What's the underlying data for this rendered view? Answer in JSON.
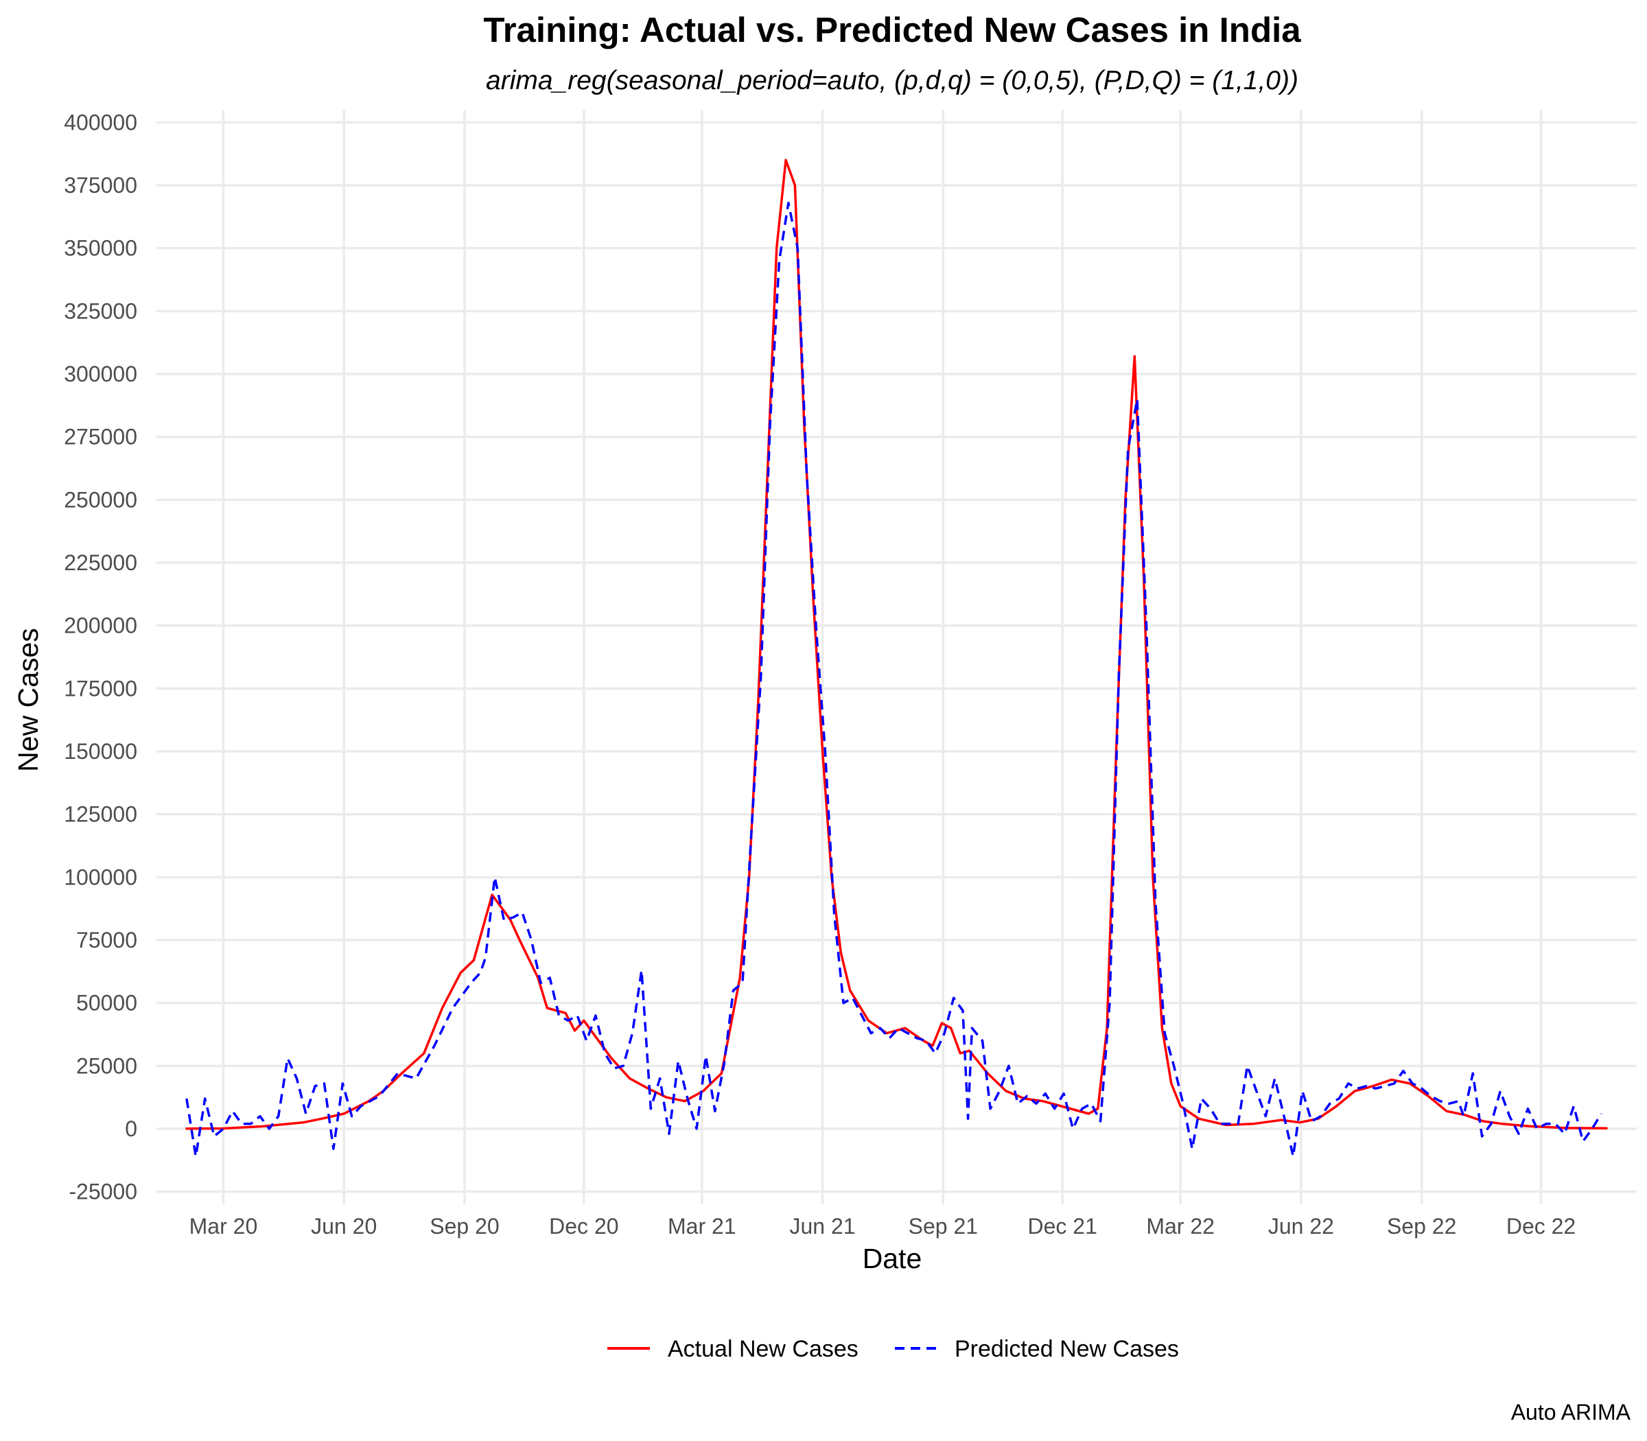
{
  "chart_data": {
    "type": "line",
    "title": "Training: Actual vs. Predicted New Cases in India",
    "subtitle": "arima_reg(seasonal_period=auto, (p,d,q) = (0,0,5), (P,D,Q) = (1,1,0))",
    "xlabel": "Date",
    "ylabel": "New Cases",
    "caption": "Auto ARIMA",
    "x_ticks": [
      {
        "date": "2020-03-01",
        "label": "Mar 20"
      },
      {
        "date": "2020-06-01",
        "label": "Jun 20"
      },
      {
        "date": "2020-09-01",
        "label": "Sep 20"
      },
      {
        "date": "2020-12-01",
        "label": "Dec 20"
      },
      {
        "date": "2021-03-01",
        "label": "Mar 21"
      },
      {
        "date": "2021-06-01",
        "label": "Jun 21"
      },
      {
        "date": "2021-09-01",
        "label": "Sep 21"
      },
      {
        "date": "2021-12-01",
        "label": "Dec 21"
      },
      {
        "date": "2022-03-01",
        "label": "Mar 22"
      },
      {
        "date": "2022-06-01",
        "label": "Jun 22"
      },
      {
        "date": "2022-09-01",
        "label": "Sep 22"
      },
      {
        "date": "2022-12-01",
        "label": "Dec 22"
      }
    ],
    "xlim": [
      "2020-01-10",
      "2023-02-12"
    ],
    "y_ticks": [
      400000,
      375000,
      350000,
      325000,
      300000,
      275000,
      250000,
      225000,
      200000,
      175000,
      150000,
      125000,
      100000,
      75000,
      50000,
      25000,
      0,
      -25000
    ],
    "ylim": [
      -30000,
      405000
    ],
    "grid": true,
    "legend_position": "bottom",
    "series": [
      {
        "name": "Actual New Cases",
        "color": "#ff0000",
        "style": "solid",
        "points": [
          [
            "2020-02-02",
            50
          ],
          [
            "2020-03-01",
            150
          ],
          [
            "2020-04-01",
            1000
          ],
          [
            "2020-05-01",
            2500
          ],
          [
            "2020-05-15",
            4000
          ],
          [
            "2020-06-01",
            6000
          ],
          [
            "2020-06-20",
            11000
          ],
          [
            "2020-07-01",
            15000
          ],
          [
            "2020-07-15",
            22000
          ],
          [
            "2020-08-01",
            30000
          ],
          [
            "2020-08-15",
            48000
          ],
          [
            "2020-08-29",
            62000
          ],
          [
            "2020-09-08",
            67000
          ],
          [
            "2020-09-15",
            80000
          ],
          [
            "2020-09-22",
            93000
          ],
          [
            "2020-09-29",
            88000
          ],
          [
            "2020-10-06",
            83000
          ],
          [
            "2020-10-13",
            75000
          ],
          [
            "2020-10-27",
            60000
          ],
          [
            "2020-11-03",
            48000
          ],
          [
            "2020-11-17",
            46000
          ],
          [
            "2020-11-24",
            39000
          ],
          [
            "2020-12-01",
            43000
          ],
          [
            "2020-12-08",
            38000
          ],
          [
            "2020-12-22",
            28000
          ],
          [
            "2021-01-05",
            20000
          ],
          [
            "2021-01-19",
            16000
          ],
          [
            "2021-02-02",
            12500
          ],
          [
            "2021-02-16",
            11000
          ],
          [
            "2021-03-02",
            15000
          ],
          [
            "2021-03-16",
            22000
          ],
          [
            "2021-03-30",
            60000
          ],
          [
            "2021-04-06",
            100000
          ],
          [
            "2021-04-13",
            170000
          ],
          [
            "2021-04-20",
            260000
          ],
          [
            "2021-04-27",
            350000
          ],
          [
            "2021-05-04",
            385000
          ],
          [
            "2021-05-11",
            375000
          ],
          [
            "2021-05-18",
            280000
          ],
          [
            "2021-05-25",
            210000
          ],
          [
            "2021-06-01",
            150000
          ],
          [
            "2021-06-08",
            100000
          ],
          [
            "2021-06-15",
            70000
          ],
          [
            "2021-06-22",
            55000
          ],
          [
            "2021-07-06",
            43000
          ],
          [
            "2021-07-20",
            38000
          ],
          [
            "2021-08-03",
            40000
          ],
          [
            "2021-08-17",
            35000
          ],
          [
            "2021-08-24",
            33000
          ],
          [
            "2021-08-31",
            42000
          ],
          [
            "2021-09-07",
            40000
          ],
          [
            "2021-09-14",
            30000
          ],
          [
            "2021-09-21",
            31000
          ],
          [
            "2021-10-05",
            22000
          ],
          [
            "2021-10-19",
            15000
          ],
          [
            "2021-11-02",
            12000
          ],
          [
            "2021-11-16",
            11000
          ],
          [
            "2021-11-30",
            9000
          ],
          [
            "2021-12-21",
            6000
          ],
          [
            "2021-12-28",
            8000
          ],
          [
            "2022-01-04",
            40000
          ],
          [
            "2022-01-11",
            150000
          ],
          [
            "2022-01-18",
            250000
          ],
          [
            "2022-01-25",
            307000
          ],
          [
            "2022-02-01",
            220000
          ],
          [
            "2022-02-08",
            100000
          ],
          [
            "2022-02-15",
            40000
          ],
          [
            "2022-02-22",
            18000
          ],
          [
            "2022-03-01",
            9000
          ],
          [
            "2022-03-15",
            4000
          ],
          [
            "2022-04-05",
            1500
          ],
          [
            "2022-04-26",
            2000
          ],
          [
            "2022-05-17",
            3500
          ],
          [
            "2022-05-31",
            2500
          ],
          [
            "2022-06-14",
            4000
          ],
          [
            "2022-06-28",
            9000
          ],
          [
            "2022-07-12",
            15000
          ],
          [
            "2022-07-26",
            17000
          ],
          [
            "2022-08-09",
            19500
          ],
          [
            "2022-08-23",
            18000
          ],
          [
            "2022-09-06",
            13000
          ],
          [
            "2022-09-20",
            7000
          ],
          [
            "2022-10-04",
            5500
          ],
          [
            "2022-10-18",
            3000
          ],
          [
            "2022-11-01",
            2000
          ],
          [
            "2022-11-22",
            1000
          ],
          [
            "2022-12-20",
            300
          ],
          [
            "2023-01-20",
            200
          ]
        ]
      },
      {
        "name": "Predicted New Cases",
        "color": "#0000ff",
        "style": "dashed",
        "points": [
          [
            "2020-02-02",
            12000
          ],
          [
            "2020-02-09",
            -11000
          ],
          [
            "2020-02-16",
            12000
          ],
          [
            "2020-02-23",
            -3000
          ],
          [
            "2020-03-01",
            0
          ],
          [
            "2020-03-08",
            7000
          ],
          [
            "2020-03-15",
            2000
          ],
          [
            "2020-03-22",
            2000
          ],
          [
            "2020-03-29",
            5000
          ],
          [
            "2020-04-05",
            0
          ],
          [
            "2020-04-12",
            5000
          ],
          [
            "2020-04-19",
            28000
          ],
          [
            "2020-04-26",
            20000
          ],
          [
            "2020-05-03",
            6000
          ],
          [
            "2020-05-10",
            17000
          ],
          [
            "2020-05-17",
            18000
          ],
          [
            "2020-05-24",
            -8000
          ],
          [
            "2020-05-31",
            18000
          ],
          [
            "2020-06-07",
            5000
          ],
          [
            "2020-06-14",
            9000
          ],
          [
            "2020-06-28",
            13000
          ],
          [
            "2020-07-12",
            22000
          ],
          [
            "2020-07-26",
            20000
          ],
          [
            "2020-08-09",
            33000
          ],
          [
            "2020-08-23",
            48000
          ],
          [
            "2020-09-06",
            58000
          ],
          [
            "2020-09-13",
            62000
          ],
          [
            "2020-09-17",
            68000
          ],
          [
            "2020-09-24",
            100000
          ],
          [
            "2020-10-01",
            83000
          ],
          [
            "2020-10-08",
            84000
          ],
          [
            "2020-10-15",
            86000
          ],
          [
            "2020-10-22",
            75000
          ],
          [
            "2020-10-29",
            58000
          ],
          [
            "2020-11-05",
            60000
          ],
          [
            "2020-11-12",
            45000
          ],
          [
            "2020-11-19",
            43000
          ],
          [
            "2020-11-26",
            45000
          ],
          [
            "2020-12-03",
            35000
          ],
          [
            "2020-12-10",
            45000
          ],
          [
            "2020-12-17",
            30000
          ],
          [
            "2020-12-24",
            24000
          ],
          [
            "2020-12-31",
            25000
          ],
          [
            "2021-01-07",
            38000
          ],
          [
            "2021-01-14",
            63000
          ],
          [
            "2021-01-21",
            8000
          ],
          [
            "2021-01-28",
            20000
          ],
          [
            "2021-02-04",
            -2000
          ],
          [
            "2021-02-11",
            27000
          ],
          [
            "2021-02-18",
            12000
          ],
          [
            "2021-02-25",
            0
          ],
          [
            "2021-03-04",
            29000
          ],
          [
            "2021-03-11",
            7000
          ],
          [
            "2021-03-18",
            26000
          ],
          [
            "2021-03-25",
            55000
          ],
          [
            "2021-04-01",
            58000
          ],
          [
            "2021-04-08",
            120000
          ],
          [
            "2021-04-15",
            180000
          ],
          [
            "2021-04-22",
            280000
          ],
          [
            "2021-04-29",
            345000
          ],
          [
            "2021-05-06",
            368000
          ],
          [
            "2021-05-13",
            350000
          ],
          [
            "2021-05-20",
            260000
          ],
          [
            "2021-05-27",
            200000
          ],
          [
            "2021-06-03",
            150000
          ],
          [
            "2021-06-10",
            85000
          ],
          [
            "2021-06-17",
            50000
          ],
          [
            "2021-06-24",
            52000
          ],
          [
            "2021-07-01",
            45000
          ],
          [
            "2021-07-08",
            38000
          ],
          [
            "2021-07-15",
            40000
          ],
          [
            "2021-07-22",
            36000
          ],
          [
            "2021-07-29",
            40000
          ],
          [
            "2021-08-05",
            38000
          ],
          [
            "2021-08-12",
            36000
          ],
          [
            "2021-08-19",
            35000
          ],
          [
            "2021-08-26",
            30000
          ],
          [
            "2021-09-02",
            38000
          ],
          [
            "2021-09-09",
            52000
          ],
          [
            "2021-09-16",
            47000
          ],
          [
            "2021-09-20",
            4000
          ],
          [
            "2021-09-23",
            40000
          ],
          [
            "2021-10-01",
            35000
          ],
          [
            "2021-10-07",
            8000
          ],
          [
            "2021-10-14",
            15000
          ],
          [
            "2021-10-21",
            25000
          ],
          [
            "2021-10-28",
            10000
          ],
          [
            "2021-11-04",
            13000
          ],
          [
            "2021-11-11",
            10000
          ],
          [
            "2021-11-18",
            14000
          ],
          [
            "2021-11-25",
            8000
          ],
          [
            "2021-12-02",
            14000
          ],
          [
            "2021-12-09",
            0
          ],
          [
            "2021-12-16",
            8000
          ],
          [
            "2021-12-23",
            10000
          ],
          [
            "2021-12-30",
            3000
          ],
          [
            "2022-01-06",
            50000
          ],
          [
            "2022-01-13",
            180000
          ],
          [
            "2022-01-20",
            270000
          ],
          [
            "2022-01-27",
            290000
          ],
          [
            "2022-02-03",
            200000
          ],
          [
            "2022-02-10",
            90000
          ],
          [
            "2022-02-17",
            38000
          ],
          [
            "2022-02-24",
            25000
          ],
          [
            "2022-03-03",
            10000
          ],
          [
            "2022-03-10",
            -8000
          ],
          [
            "2022-03-17",
            12000
          ],
          [
            "2022-03-24",
            8000
          ],
          [
            "2022-03-31",
            2000
          ],
          [
            "2022-04-07",
            2000
          ],
          [
            "2022-04-14",
            2000
          ],
          [
            "2022-04-21",
            25000
          ],
          [
            "2022-04-28",
            15000
          ],
          [
            "2022-05-05",
            5000
          ],
          [
            "2022-05-12",
            20000
          ],
          [
            "2022-05-19",
            5000
          ],
          [
            "2022-05-26",
            -11000
          ],
          [
            "2022-06-02",
            15000
          ],
          [
            "2022-06-09",
            3000
          ],
          [
            "2022-06-16",
            5000
          ],
          [
            "2022-06-23",
            10000
          ],
          [
            "2022-06-30",
            12000
          ],
          [
            "2022-07-07",
            18000
          ],
          [
            "2022-07-14",
            16000
          ],
          [
            "2022-07-21",
            17000
          ],
          [
            "2022-07-28",
            16000
          ],
          [
            "2022-08-04",
            17000
          ],
          [
            "2022-08-11",
            18000
          ],
          [
            "2022-08-18",
            23000
          ],
          [
            "2022-08-25",
            18000
          ],
          [
            "2022-09-01",
            16000
          ],
          [
            "2022-09-08",
            13000
          ],
          [
            "2022-09-15",
            11000
          ],
          [
            "2022-09-22",
            10000
          ],
          [
            "2022-09-29",
            11000
          ],
          [
            "2022-10-03",
            5000
          ],
          [
            "2022-10-10",
            22000
          ],
          [
            "2022-10-17",
            -3000
          ],
          [
            "2022-10-24",
            2000
          ],
          [
            "2022-10-31",
            15000
          ],
          [
            "2022-11-07",
            5000
          ],
          [
            "2022-11-14",
            -2000
          ],
          [
            "2022-11-21",
            8000
          ],
          [
            "2022-11-28",
            0
          ],
          [
            "2022-12-05",
            2000
          ],
          [
            "2022-12-12",
            2000
          ],
          [
            "2022-12-19",
            -2000
          ],
          [
            "2022-12-26",
            9000
          ],
          [
            "2023-01-02",
            -5000
          ],
          [
            "2023-01-09",
            0
          ],
          [
            "2023-01-16",
            6000
          ]
        ]
      }
    ]
  }
}
